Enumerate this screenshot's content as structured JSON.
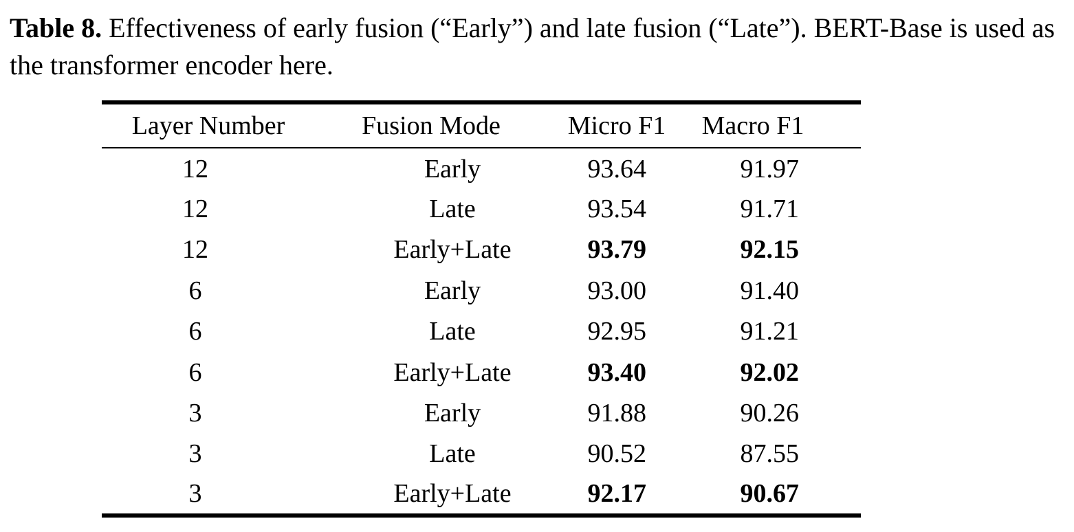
{
  "caption": {
    "label": "Table 8.",
    "text": " Effectiveness of early fusion (“Early”) and late fusion (“Late”). BERT-Base is used as the transformer encoder here."
  },
  "table": {
    "headers": [
      "Layer Number",
      "Fusion Mode",
      "Micro F1",
      "Macro F1"
    ],
    "rows": [
      {
        "layer": "12",
        "mode": "Early",
        "micro": "93.64",
        "macro": "91.97",
        "bold": false
      },
      {
        "layer": "12",
        "mode": "Late",
        "micro": "93.54",
        "macro": "91.71",
        "bold": false
      },
      {
        "layer": "12",
        "mode": "Early+Late",
        "micro": "93.79",
        "macro": "92.15",
        "bold": true
      },
      {
        "layer": "6",
        "mode": "Early",
        "micro": "93.00",
        "macro": "91.40",
        "bold": false
      },
      {
        "layer": "6",
        "mode": "Late",
        "micro": "92.95",
        "macro": "91.21",
        "bold": false
      },
      {
        "layer": "6",
        "mode": "Early+Late",
        "micro": "93.40",
        "macro": "92.02",
        "bold": true
      },
      {
        "layer": "3",
        "mode": "Early",
        "micro": "91.88",
        "macro": "90.26",
        "bold": false
      },
      {
        "layer": "3",
        "mode": "Late",
        "micro": "90.52",
        "macro": "87.55",
        "bold": false
      },
      {
        "layer": "3",
        "mode": "Early+Late",
        "micro": "92.17",
        "macro": "90.67",
        "bold": true
      }
    ]
  }
}
